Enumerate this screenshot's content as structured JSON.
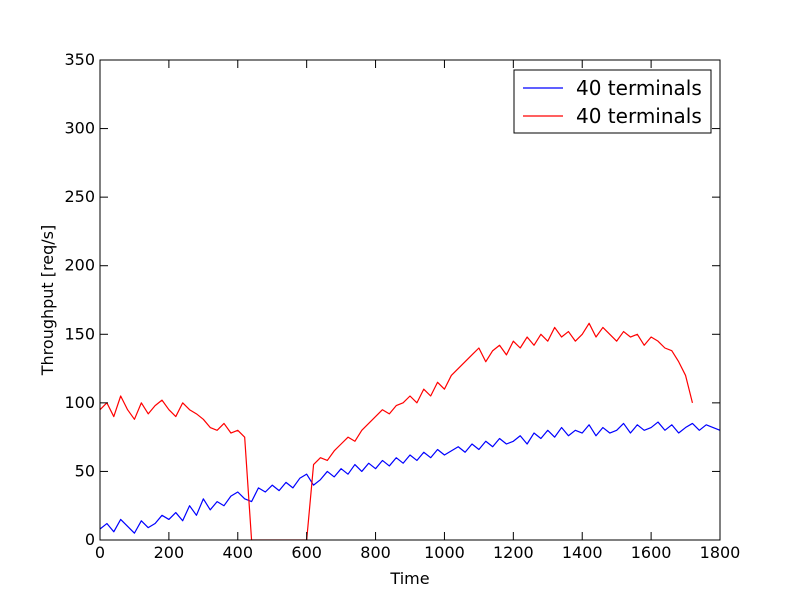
{
  "chart_data": {
    "type": "line",
    "title": "",
    "xlabel": "Time",
    "ylabel": "Throughput [req/s]",
    "xlim": [
      0,
      1800
    ],
    "ylim": [
      0,
      350
    ],
    "xticks": [
      0,
      200,
      400,
      600,
      800,
      1000,
      1200,
      1400,
      1600,
      1800
    ],
    "yticks": [
      0,
      50,
      100,
      150,
      200,
      250,
      300,
      350
    ],
    "grid": false,
    "legend_position": "top-right",
    "colors": {
      "blue": "#0000ff",
      "red": "#ff0000"
    },
    "series": [
      {
        "name": "40 terminals",
        "color": "#0000ff",
        "x": [
          0,
          20,
          40,
          60,
          80,
          100,
          120,
          140,
          160,
          180,
          200,
          220,
          240,
          260,
          280,
          300,
          320,
          340,
          360,
          380,
          400,
          420,
          440,
          460,
          480,
          500,
          520,
          540,
          560,
          580,
          600,
          620,
          640,
          660,
          680,
          700,
          720,
          740,
          760,
          780,
          800,
          820,
          840,
          860,
          880,
          900,
          920,
          940,
          960,
          980,
          1000,
          1020,
          1040,
          1060,
          1080,
          1100,
          1120,
          1140,
          1160,
          1180,
          1200,
          1220,
          1240,
          1260,
          1280,
          1300,
          1320,
          1340,
          1360,
          1380,
          1400,
          1420,
          1440,
          1460,
          1480,
          1500,
          1520,
          1540,
          1560,
          1580,
          1600,
          1620,
          1640,
          1660,
          1680,
          1700,
          1720,
          1740,
          1760,
          1780,
          1800
        ],
        "y": [
          8,
          12,
          6,
          15,
          10,
          5,
          14,
          9,
          12,
          18,
          15,
          20,
          14,
          25,
          18,
          30,
          22,
          28,
          25,
          32,
          35,
          30,
          28,
          38,
          35,
          40,
          36,
          42,
          38,
          45,
          48,
          40,
          44,
          50,
          46,
          52,
          48,
          55,
          50,
          56,
          52,
          58,
          54,
          60,
          56,
          62,
          58,
          64,
          60,
          66,
          62,
          65,
          68,
          64,
          70,
          66,
          72,
          68,
          74,
          70,
          72,
          76,
          70,
          78,
          74,
          80,
          75,
          82,
          76,
          80,
          78,
          84,
          76,
          82,
          78,
          80,
          85,
          78,
          84,
          80,
          82,
          86,
          80,
          84,
          78,
          82,
          85,
          80,
          84,
          82,
          80
        ]
      },
      {
        "name": "40 terminals",
        "color": "#ff0000",
        "x": [
          0,
          20,
          40,
          60,
          80,
          100,
          120,
          140,
          160,
          180,
          200,
          220,
          240,
          260,
          280,
          300,
          320,
          340,
          360,
          380,
          400,
          420,
          440,
          460,
          480,
          500,
          520,
          540,
          560,
          580,
          600,
          620,
          640,
          660,
          680,
          700,
          720,
          740,
          760,
          780,
          800,
          820,
          840,
          860,
          880,
          900,
          920,
          940,
          960,
          980,
          1000,
          1020,
          1040,
          1060,
          1080,
          1100,
          1120,
          1140,
          1160,
          1180,
          1200,
          1220,
          1240,
          1260,
          1280,
          1300,
          1320,
          1340,
          1360,
          1380,
          1400,
          1420,
          1440,
          1460,
          1480,
          1500,
          1520,
          1540,
          1560,
          1580,
          1600,
          1620,
          1640,
          1660,
          1680,
          1700,
          1720
        ],
        "y": [
          95,
          100,
          90,
          105,
          95,
          88,
          100,
          92,
          98,
          102,
          95,
          90,
          100,
          95,
          92,
          88,
          82,
          80,
          85,
          78,
          80,
          75,
          0,
          0,
          0,
          0,
          0,
          0,
          0,
          0,
          0,
          55,
          60,
          58,
          65,
          70,
          75,
          72,
          80,
          85,
          90,
          95,
          92,
          98,
          100,
          105,
          100,
          110,
          105,
          115,
          110,
          120,
          125,
          130,
          135,
          140,
          130,
          138,
          142,
          135,
          145,
          140,
          148,
          142,
          150,
          145,
          155,
          148,
          152,
          145,
          150,
          158,
          148,
          155,
          150,
          145,
          152,
          148,
          150,
          142,
          148,
          145,
          140,
          138,
          130,
          120,
          100
        ]
      }
    ]
  }
}
